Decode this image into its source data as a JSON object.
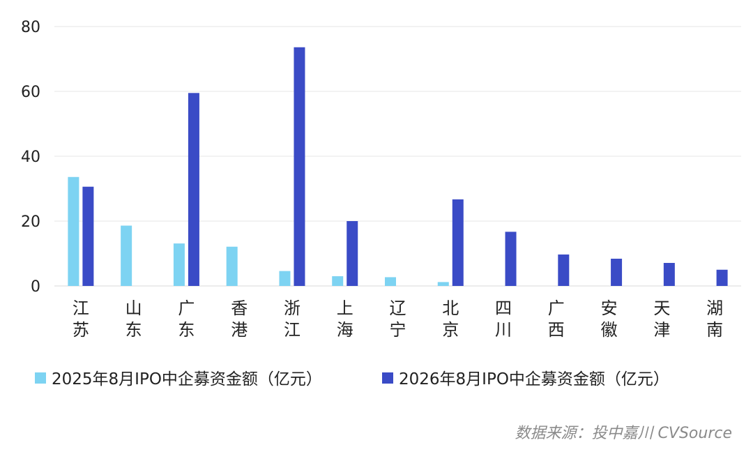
{
  "chart_data": {
    "type": "bar",
    "categories": [
      "江苏",
      "山东",
      "广东",
      "香港",
      "浙江",
      "上海",
      "辽宁",
      "北京",
      "四川",
      "广西",
      "安徽",
      "天津",
      "湖南"
    ],
    "series": [
      {
        "name": "2025年8月IPO中企募资金额（亿元）",
        "color": "#7dd3f2",
        "values": [
          33.6,
          18.6,
          13.1,
          12.1,
          4.6,
          3.0,
          2.7,
          1.2,
          null,
          null,
          null,
          null,
          null
        ]
      },
      {
        "name": "2026年8月IPO中企募资金额（亿元）",
        "color": "#3a4bc6",
        "values": [
          30.6,
          null,
          59.5,
          null,
          73.6,
          20.0,
          null,
          26.7,
          16.7,
          9.7,
          8.4,
          7.1,
          5.0
        ]
      }
    ],
    "y_ticks": [
      "0",
      "20",
      "40",
      "60",
      "80"
    ],
    "ylim": [
      0,
      80
    ],
    "grid": true,
    "legend_position": "bottom"
  },
  "source_note": "数据来源：投中嘉川 CVSource"
}
